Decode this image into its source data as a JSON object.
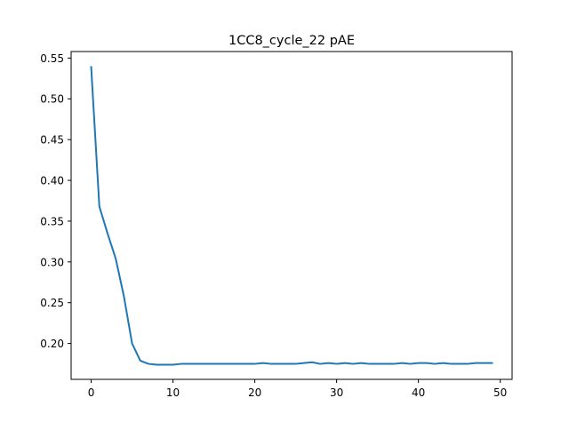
{
  "chart_data": {
    "type": "line",
    "title": "1CC8_cycle_22 pAE",
    "xlabel": "",
    "ylabel": "",
    "xlim": [
      -2.45,
      51.45
    ],
    "ylim": [
      0.156,
      0.558
    ],
    "grid": false,
    "x_ticks": [
      0,
      10,
      20,
      30,
      40,
      50
    ],
    "x_tick_labels": [
      "0",
      "10",
      "20",
      "30",
      "40",
      "50"
    ],
    "y_ticks": [
      0.2,
      0.25,
      0.3,
      0.35,
      0.4,
      0.45,
      0.5,
      0.55
    ],
    "y_tick_labels": [
      "0.20",
      "0.25",
      "0.30",
      "0.35",
      "0.40",
      "0.45",
      "0.50",
      "0.55"
    ],
    "line_color": "#1f77b4",
    "series": [
      {
        "x": [
          0,
          1,
          2,
          3,
          4,
          5,
          6,
          7,
          8,
          9,
          10,
          11,
          12,
          13,
          14,
          15,
          16,
          17,
          18,
          19,
          20,
          21,
          22,
          23,
          24,
          25,
          26,
          27,
          28,
          29,
          30,
          31,
          32,
          33,
          34,
          35,
          36,
          37,
          38,
          39,
          40,
          41,
          42,
          43,
          44,
          45,
          46,
          47,
          48,
          49
        ],
        "values": [
          0.539,
          0.368,
          0.335,
          0.304,
          0.258,
          0.2,
          0.179,
          0.175,
          0.174,
          0.174,
          0.174,
          0.175,
          0.175,
          0.175,
          0.175,
          0.175,
          0.175,
          0.175,
          0.175,
          0.175,
          0.175,
          0.176,
          0.175,
          0.175,
          0.175,
          0.175,
          0.176,
          0.177,
          0.175,
          0.176,
          0.175,
          0.176,
          0.175,
          0.176,
          0.175,
          0.175,
          0.175,
          0.175,
          0.176,
          0.175,
          0.176,
          0.176,
          0.175,
          0.176,
          0.175,
          0.175,
          0.175,
          0.176,
          0.176,
          0.176
        ]
      }
    ]
  }
}
